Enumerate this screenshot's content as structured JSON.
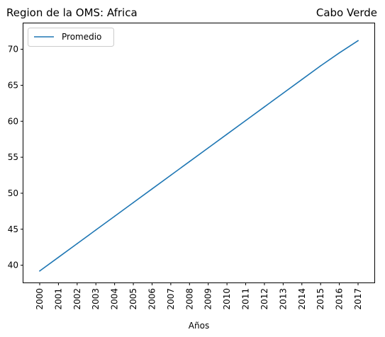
{
  "chart_data": {
    "type": "line",
    "title_left": "Region de la OMS: Africa",
    "title_right": "Cabo Verde",
    "xlabel": "Años",
    "ylabel": "",
    "x": [
      "2000",
      "2001",
      "2002",
      "2003",
      "2004",
      "2005",
      "2006",
      "2007",
      "2008",
      "2009",
      "2010",
      "2011",
      "2012",
      "2013",
      "2014",
      "2015",
      "2016",
      "2017"
    ],
    "series": [
      {
        "name": "Promedio",
        "color": "#1f77b4",
        "values": [
          39.2,
          41.1,
          43.0,
          44.9,
          46.8,
          48.7,
          50.6,
          52.5,
          54.4,
          56.3,
          58.2,
          60.1,
          62.0,
          63.9,
          65.8,
          67.7,
          69.5,
          71.2
        ]
      }
    ],
    "yticks": [
      40,
      45,
      50,
      55,
      60,
      65,
      70
    ],
    "ylim": [
      37.6,
      73.6
    ],
    "grid": false,
    "legend_position": "upper left"
  }
}
